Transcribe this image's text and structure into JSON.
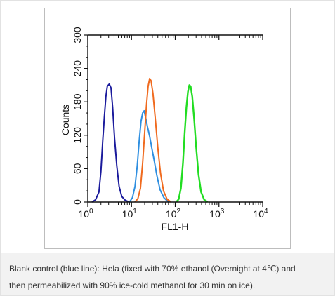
{
  "chart_data": {
    "type": "line",
    "xlabel": "FL1-H",
    "ylabel": "Counts",
    "x_scale": "log",
    "xlim": [
      1,
      10000
    ],
    "ylim": [
      0,
      300
    ],
    "x_ticks": [
      {
        "value": 1,
        "base": "10",
        "exp": "0"
      },
      {
        "value": 10,
        "base": "10",
        "exp": "1"
      },
      {
        "value": 100,
        "base": "10",
        "exp": "2"
      },
      {
        "value": 1000,
        "base": "10",
        "exp": "3"
      },
      {
        "value": 10000,
        "base": "10",
        "exp": "4"
      }
    ],
    "y_ticks": [
      "0",
      "60",
      "120",
      "180",
      "240",
      "300"
    ],
    "grid": false,
    "series": [
      {
        "color": "#1a1a9c",
        "points": [
          [
            1.25,
            0
          ],
          [
            1.5,
            4
          ],
          [
            1.8,
            18
          ],
          [
            2.0,
            55
          ],
          [
            2.2,
            110
          ],
          [
            2.4,
            155
          ],
          [
            2.6,
            190
          ],
          [
            2.8,
            208
          ],
          [
            3.1,
            212
          ],
          [
            3.4,
            205
          ],
          [
            3.7,
            170
          ],
          [
            4.1,
            115
          ],
          [
            4.6,
            65
          ],
          [
            5.2,
            28
          ],
          [
            6.0,
            10
          ],
          [
            7.2,
            3
          ],
          [
            9.0,
            0
          ]
        ]
      },
      {
        "color": "#2f8fe0",
        "points": [
          [
            9.0,
            0
          ],
          [
            10.5,
            8
          ],
          [
            12,
            28
          ],
          [
            13.5,
            65
          ],
          [
            15,
            110
          ],
          [
            16.5,
            145
          ],
          [
            18,
            160
          ],
          [
            19.5,
            164
          ],
          [
            21,
            152
          ],
          [
            23,
            136
          ],
          [
            26,
            118
          ],
          [
            29,
            98
          ],
          [
            33,
            75
          ],
          [
            38,
            48
          ],
          [
            45,
            22
          ],
          [
            55,
            8
          ],
          [
            70,
            0
          ]
        ]
      },
      {
        "color": "#f06a1e",
        "points": [
          [
            12,
            0
          ],
          [
            14,
            6
          ],
          [
            16,
            25
          ],
          [
            18,
            70
          ],
          [
            20,
            125
          ],
          [
            22,
            175
          ],
          [
            24,
            208
          ],
          [
            26,
            222
          ],
          [
            28,
            218
          ],
          [
            31,
            195
          ],
          [
            35,
            150
          ],
          [
            40,
            98
          ],
          [
            46,
            52
          ],
          [
            54,
            20
          ],
          [
            65,
            5
          ],
          [
            80,
            0
          ]
        ]
      },
      {
        "color": "#22dd22",
        "points": [
          [
            105,
            0
          ],
          [
            120,
            5
          ],
          [
            135,
            25
          ],
          [
            150,
            70
          ],
          [
            165,
            125
          ],
          [
            180,
            170
          ],
          [
            195,
            198
          ],
          [
            210,
            210
          ],
          [
            225,
            208
          ],
          [
            245,
            190
          ],
          [
            270,
            150
          ],
          [
            300,
            100
          ],
          [
            340,
            50
          ],
          [
            390,
            18
          ],
          [
            460,
            4
          ],
          [
            550,
            0
          ]
        ]
      }
    ]
  },
  "caption": {
    "line1": "Blank control (blue line): Hela (fixed with 70% ethanol (Overnight at 4℃) and",
    "line2": "then permeabilized with 90% ice-cold methanol for 30 min on ice)."
  }
}
